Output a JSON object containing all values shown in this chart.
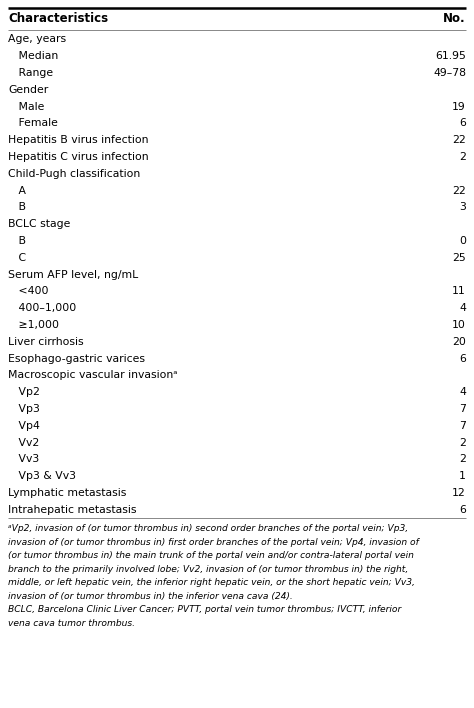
{
  "header": [
    "Characteristics",
    "No."
  ],
  "rows": [
    {
      "label": "Age, years",
      "value": "",
      "indent": 0
    },
    {
      "label": "   Median",
      "value": "61.95",
      "indent": 0
    },
    {
      "label": "   Range",
      "value": "49–78",
      "indent": 0
    },
    {
      "label": "Gender",
      "value": "",
      "indent": 0
    },
    {
      "label": "   Male",
      "value": "19",
      "indent": 0
    },
    {
      "label": "   Female",
      "value": "6",
      "indent": 0
    },
    {
      "label": "Hepatitis B virus infection",
      "value": "22",
      "indent": 0
    },
    {
      "label": "Hepatitis C virus infection",
      "value": "2",
      "indent": 0
    },
    {
      "label": "Child-Pugh classification",
      "value": "",
      "indent": 0
    },
    {
      "label": "   A",
      "value": "22",
      "indent": 0
    },
    {
      "label": "   B",
      "value": "3",
      "indent": 0
    },
    {
      "label": "BCLC stage",
      "value": "",
      "indent": 0
    },
    {
      "label": "   B",
      "value": "0",
      "indent": 0
    },
    {
      "label": "   C",
      "value": "25",
      "indent": 0
    },
    {
      "label": "Serum AFP level, ng/mL",
      "value": "",
      "indent": 0
    },
    {
      "label": "   <400",
      "value": "11",
      "indent": 0
    },
    {
      "label": "   400–1,000",
      "value": "4",
      "indent": 0
    },
    {
      "label": "   ≥1,000",
      "value": "10",
      "indent": 0
    },
    {
      "label": "Liver cirrhosis",
      "value": "20",
      "indent": 0
    },
    {
      "label": "Esophago-gastric varices",
      "value": "6",
      "indent": 0
    },
    {
      "label": "Macroscopic vascular invasionᵃ",
      "value": "",
      "indent": 0
    },
    {
      "label": "   Vp2",
      "value": "4",
      "indent": 0
    },
    {
      "label": "   Vp3",
      "value": "7",
      "indent": 0
    },
    {
      "label": "   Vp4",
      "value": "7",
      "indent": 0
    },
    {
      "label": "   Vv2",
      "value": "2",
      "indent": 0
    },
    {
      "label": "   Vv3",
      "value": "2",
      "indent": 0
    },
    {
      "label": "   Vp3 & Vv3",
      "value": "1",
      "indent": 0
    },
    {
      "label": "Lymphatic metastasis",
      "value": "12",
      "indent": 0
    },
    {
      "label": "Intrahepatic metastasis",
      "value": "6",
      "indent": 0
    }
  ],
  "footnote_lines": [
    "ᵃVp2, invasion of (or tumor thrombus in) second order branches of the portal vein; Vp3,",
    "invasion of (or tumor thrombus in) first order branches of the portal vein; Vp4, invasion of",
    "(or tumor thrombus in) the main trunk of the portal vein and/or contra-lateral portal vein",
    "branch to the primarily involved lobe; Vv2, invasion of (or tumor thrombus in) the right,",
    "middle, or left hepatic vein, the inferior right hepatic vein, or the short hepatic vein; Vv3,",
    "invasion of (or tumor thrombus in) the inferior vena cava (24).",
    "BCLC, Barcelona Clinic Liver Cancer; PVTT, portal vein tumor thrombus; IVCTT, inferior",
    "vena cava tumor thrombus."
  ],
  "bg_color": "#ffffff",
  "line_color": "#888888",
  "top_line_color": "#000000",
  "text_color": "#000000",
  "font_size": 7.8,
  "header_font_size": 8.5,
  "footnote_font_size": 6.6
}
